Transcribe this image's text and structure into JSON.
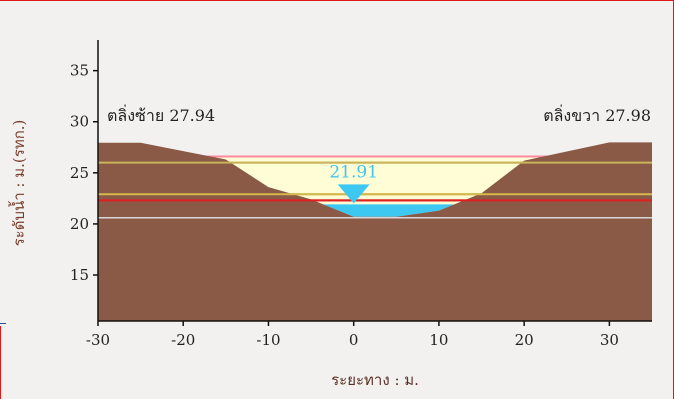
{
  "chart_data": {
    "type": "area",
    "title": "",
    "xlabel": "ระยะทาง : ม.",
    "ylabel": "ระดับน้ำ : ม.(รทก.)",
    "xlim": [
      -30,
      35
    ],
    "ylim": [
      10.5,
      38
    ],
    "x_ticks": [
      -30,
      -20,
      -10,
      0,
      10,
      20,
      30
    ],
    "y_ticks": [
      15,
      20,
      25,
      30,
      35
    ],
    "grid": false,
    "cross_section": {
      "name": "ground",
      "x": [
        -30,
        -25,
        -15,
        -10,
        -5,
        0,
        5,
        10,
        15,
        20,
        30,
        35
      ],
      "y": [
        27.94,
        27.94,
        26.3,
        23.6,
        22.4,
        20.7,
        20.7,
        21.3,
        23.0,
        26.2,
        27.98,
        27.98
      ]
    },
    "water_level": {
      "value": 21.91,
      "label": "21.91"
    },
    "reference_lines": [
      {
        "y": 26.6,
        "color": "#ff8aa0"
      },
      {
        "y": 26.0,
        "color": "#c8b45a"
      },
      {
        "y": 22.9,
        "color": "#d4b84a"
      },
      {
        "y": 22.3,
        "color": "#e02020"
      },
      {
        "y": 20.6,
        "color": "#d8d8d8"
      }
    ],
    "bank_labels": {
      "left": "ตลิ่งซ้าย 27.94",
      "right": "ตลิ่งขวา 27.98"
    },
    "colors": {
      "ground": "#8a5a47",
      "water": "#3cc8f0",
      "cream_band": "#fffdd6",
      "axis": "#111111"
    }
  }
}
